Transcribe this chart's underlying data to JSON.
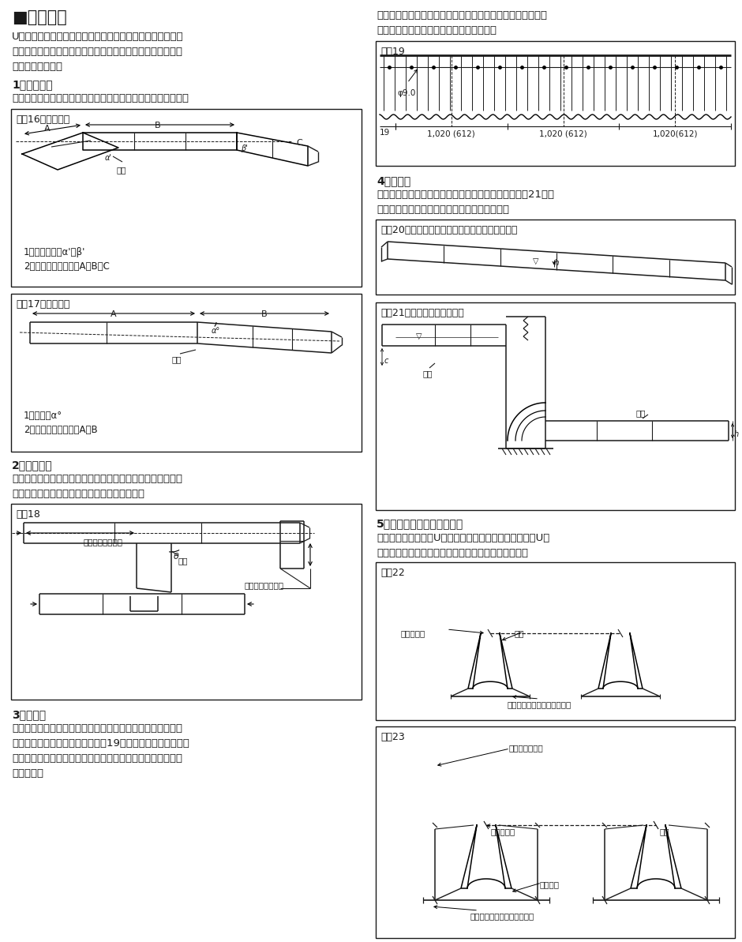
{
  "bg_color": "#ffffff",
  "text_color": "#1a1a1a",
  "title": "■特殊加工",
  "intro_text": "U字フリュームの用途、使用場所等の条件に応じて、角度加\n工、枝管加工、集水孔、落差工等の特殊加工を行いますので\nご相談ください。",
  "sec1_title": "1）角度加工",
  "sec1_text": "角度加工を行う場合には、特に下記の点をご指示ねがいます。",
  "fig16_title": "図－16　平面角度",
  "fig16_notes1": "1）　角度　　α'、β'",
  "fig16_notes2": "2）フリューム長さ　A、B、C",
  "fig17_title": "図－17　縦断角度",
  "fig17_notes1": "1）角度　α°",
  "fig17_notes2": "2）フリューム長さ　A、B",
  "sec2_title": "2）枝管加工",
  "sec2_text1": "水路の合流点、分岐点に使用する枝管の加工には、基準点か",
  "sec2_text2": "らの距離、高さおよび角度をご指示ください。",
  "fig18_title": "図－18",
  "label_welding": "溶接",
  "label_dist": "基準点からの距離",
  "label_height": "基準点からの高さ",
  "sec3_title": "3）集水孔",
  "sec3_text1": "　側壁からの集水が必要な場合の集水管としてもご使用にな",
  "sec3_text2": "れます。この場合、孔明けは図－19のような方法で工場加工",
  "sec3_text3": "いたします。孔明け位置はフリューム内側より見て山に孔を",
  "sec3_text4": "あけます。",
  "right_intro1": "有孔セクションを使用する場合には、孔の目詰り防止のため",
  "right_intro2": "に砂利等により裏込めを行ってください。",
  "fig19_title": "図－19",
  "fig19_dim": "φ9.0",
  "fig19_m1": "1,020 (612)",
  "fig19_m2": "1,020 (612)",
  "fig19_m3": "1,020(612)",
  "sec4_title": "4）落差工",
  "sec4_text1": "急こう配で水深が浅く、取水に困難な場合には、図－21のよ",
  "sec4_text2": "うな落差工を設けることにより解決出来ます。",
  "fig20_title": "図－20　落差工を用いない急こう配のフリューム",
  "fig21_title": "図－21　落差工を用いた場合",
  "sec5_title": "5）浮上り防止用羽根板取付",
  "sec5_text1": "浮上り防止のためにU字フリュームの質量を増すべく、U字",
  "sec5_text2": "フリュームの底部または側部に羽根板を取付けます。",
  "fig22_title": "図－22",
  "lbl_tairod": "タイロッド",
  "lbl_hontai": "本体",
  "lbl_hane": "羽根板（コルゲートシート）",
  "fig23_title": "図－23",
  "lbl_side": "サイドアングル",
  "lbl_angle": "アングル"
}
